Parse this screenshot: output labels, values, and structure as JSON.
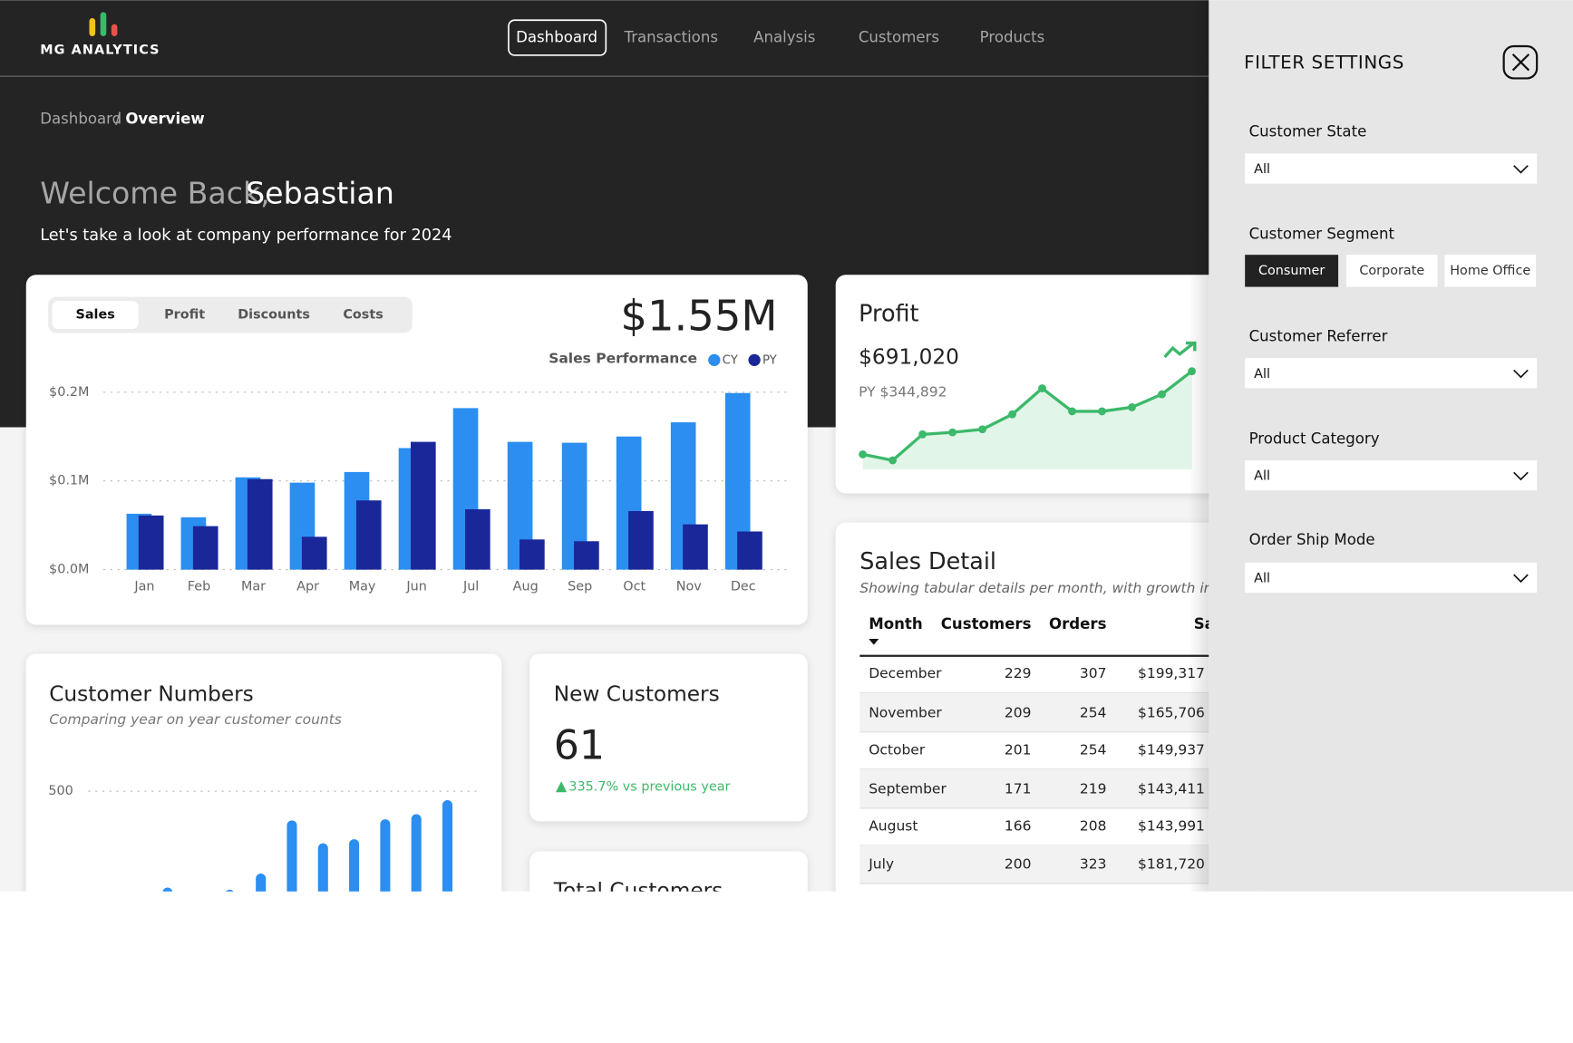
{
  "nav": {
    "logo": "MG ANALYTICS",
    "items": [
      "Dashboard",
      "Transactions",
      "Analysis",
      "Customers",
      "Products"
    ]
  },
  "breadcrumb": {
    "parent": "Dashboard",
    "separator": "/",
    "current": "Overview"
  },
  "welcome": {
    "greeting": "Welcome Back,",
    "name": "Sebastian",
    "subtitle": "Let's take a look at company performance for 2024"
  },
  "sales_card": {
    "tabs": [
      "Sales",
      "Profit",
      "Discounts",
      "Costs"
    ],
    "total": "$1.55M",
    "legend_title": "Sales Performance"
  },
  "profit_card": {
    "title": "Profit",
    "value": "$691,020",
    "py": "PY $344,892"
  },
  "customer_numbers": {
    "title": "Customer Numbers",
    "subtitle": "Comparing year on year customer counts"
  },
  "new_customers": {
    "title": "New Customers",
    "value": "61",
    "change": "335.7% vs previous year"
  },
  "total_customers": {
    "title": "Total Customers"
  },
  "sales_detail": {
    "title": "Sales Detail",
    "subtitle": "Showing tabular details per month, with growth indicators",
    "columns": [
      "Month",
      "Customers",
      "Orders",
      "Sales"
    ],
    "rows": [
      [
        "December",
        "229",
        "307",
        "$199,317"
      ],
      [
        "November",
        "209",
        "254",
        "$165,706"
      ],
      [
        "October",
        "201",
        "254",
        "$149,937"
      ],
      [
        "September",
        "171",
        "219",
        "$143,411"
      ],
      [
        "August",
        "166",
        "208",
        "$143,991"
      ],
      [
        "July",
        "200",
        "323",
        "$181,720"
      ]
    ]
  },
  "filters": {
    "title": "FILTER SETTINGS",
    "fields": [
      {
        "label": "Customer State",
        "value": "All"
      },
      {
        "label": "Customer Segment",
        "options": [
          "Consumer",
          "Corporate",
          "Home Office"
        ]
      },
      {
        "label": "Customer Referrer",
        "value": "All"
      },
      {
        "label": "Product Category",
        "value": "All"
      },
      {
        "label": "Order Ship Mode",
        "value": "All"
      }
    ]
  },
  "chart_data": [
    {
      "type": "bar",
      "categories": [
        "Jan",
        "Feb",
        "Mar",
        "Apr",
        "May",
        "Jun",
        "Jul",
        "Aug",
        "Sep",
        "Oct",
        "Nov",
        "Dec"
      ],
      "series": [
        {
          "name": "CY",
          "color": "#2b8ef0",
          "values": [
            63000,
            59000,
            104000,
            98000,
            110000,
            137000,
            182000,
            144000,
            143000,
            150000,
            166000,
            199000
          ]
        },
        {
          "name": "PY",
          "color": "#1a2799",
          "values": [
            61000,
            49000,
            102000,
            37000,
            78000,
            144000,
            68000,
            34000,
            32000,
            66000,
            51000,
            43000
          ]
        }
      ],
      "ylim": [
        0,
        200000
      ],
      "yticks": [
        {
          "value": 0,
          "label": "$0.0M"
        },
        {
          "value": 100000,
          "label": "$0.1M"
        },
        {
          "value": 200000,
          "label": "$0.2M"
        }
      ],
      "grid": true
    },
    {
      "type": "area",
      "values": [
        16600,
        10000,
        38800,
        41000,
        44400,
        61000,
        89800,
        64300,
        64300,
        68800,
        83200,
        108700
      ],
      "color": "#3cb96a",
      "ylim": [
        0,
        130000
      ]
    },
    {
      "type": "bar",
      "values": [
        null,
        null,
        219,
        null,
        213,
        260,
        415,
        348,
        360,
        418,
        433,
        474
      ],
      "color": "#2b8ef0",
      "ylim": [
        0,
        500
      ],
      "yticks": [
        500
      ],
      "grid": true
    }
  ]
}
